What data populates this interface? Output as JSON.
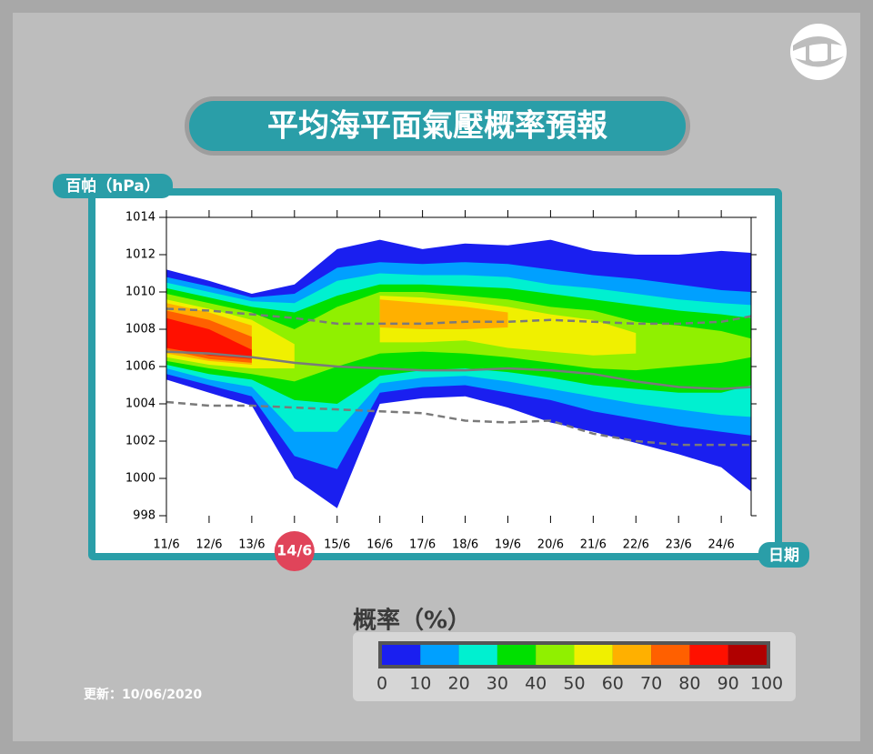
{
  "chart_data": {
    "type": "probability-fan",
    "title": "平均海平面氣壓概率預報",
    "y_label": "百帕（hPa）",
    "x_label": "日期",
    "update_note": "更新：10/06/2020",
    "xlim": [
      11,
      24.7
    ],
    "xticks": [
      {
        "value": 11,
        "label": "11/6"
      },
      {
        "value": 12,
        "label": "12/6"
      },
      {
        "value": 13,
        "label": "13/6"
      },
      {
        "value": 14,
        "label": "14/6"
      },
      {
        "value": 15,
        "label": "15/6"
      },
      {
        "value": 16,
        "label": "16/6"
      },
      {
        "value": 17,
        "label": "17/6"
      },
      {
        "value": 18,
        "label": "18/6"
      },
      {
        "value": 19,
        "label": "19/6"
      },
      {
        "value": 20,
        "label": "20/6"
      },
      {
        "value": 21,
        "label": "21/6"
      },
      {
        "value": 22,
        "label": "22/6"
      },
      {
        "value": 23,
        "label": "23/6"
      },
      {
        "value": 24,
        "label": "24/6"
      }
    ],
    "highlight_x": 14,
    "ylim": [
      998,
      1014
    ],
    "yticks": [
      998,
      1000,
      1002,
      1004,
      1006,
      1008,
      1010,
      1012,
      1014
    ],
    "x": [
      11,
      12,
      13,
      14,
      15,
      16,
      17,
      18,
      19,
      20,
      21,
      22,
      23,
      24,
      24.7
    ],
    "bands": [
      {
        "probability": 0,
        "upper": [
          1011.2,
          1010.6,
          1009.9,
          1010.4,
          1012.3,
          1012.8,
          1012.3,
          1012.6,
          1012.5,
          1012.8,
          1012.2,
          1012.0,
          1012.0,
          1012.2,
          1012.1
        ],
        "lower": [
          1005.3,
          1004.6,
          1003.9,
          1000.0,
          998.4,
          1004.0,
          1004.3,
          1004.4,
          1003.8,
          1003.0,
          1002.5,
          1001.9,
          1001.3,
          1000.6,
          999.3
        ]
      },
      {
        "probability": 10,
        "upper": [
          1010.8,
          1010.3,
          1009.7,
          1009.9,
          1011.3,
          1011.6,
          1011.5,
          1011.6,
          1011.5,
          1011.2,
          1010.9,
          1010.7,
          1010.4,
          1010.1,
          1010.0
        ],
        "lower": [
          1005.6,
          1005.0,
          1004.4,
          1001.2,
          1000.5,
          1004.6,
          1004.9,
          1005.0,
          1004.6,
          1004.2,
          1003.6,
          1003.2,
          1002.8,
          1002.5,
          1002.3
        ]
      },
      {
        "probability": 20,
        "upper": [
          1010.5,
          1010.0,
          1009.5,
          1009.4,
          1010.6,
          1011.0,
          1010.9,
          1010.9,
          1010.8,
          1010.4,
          1010.2,
          1009.9,
          1009.6,
          1009.4,
          1009.3
        ],
        "lower": [
          1005.9,
          1005.3,
          1004.9,
          1002.5,
          1002.5,
          1005.1,
          1005.4,
          1005.5,
          1005.2,
          1004.8,
          1004.4,
          1004.0,
          1003.7,
          1003.4,
          1003.3
        ]
      },
      {
        "probability": 30,
        "upper": [
          1010.2,
          1009.7,
          1009.2,
          1008.9,
          1009.8,
          1010.4,
          1010.4,
          1010.3,
          1010.2,
          1009.9,
          1009.6,
          1009.3,
          1009.0,
          1008.8,
          1008.6
        ],
        "lower": [
          1006.1,
          1005.6,
          1005.3,
          1004.2,
          1004.0,
          1005.5,
          1005.8,
          1005.9,
          1005.7,
          1005.4,
          1005.0,
          1004.8,
          1004.6,
          1004.6,
          1005.0
        ]
      },
      {
        "probability": 40,
        "upper": [
          1009.9,
          1009.4,
          1008.9,
          1008.0,
          1009.2,
          1010.0,
          1010.0,
          1009.8,
          1009.6,
          1009.2,
          1009.0,
          1008.4,
          1008.2,
          1007.9,
          1007.5
        ],
        "lower": [
          1006.3,
          1005.9,
          1005.6,
          1005.2,
          1006.0,
          1006.7,
          1006.8,
          1006.7,
          1006.5,
          1006.2,
          1005.9,
          1005.8,
          1006.0,
          1006.2,
          1006.5
        ]
      },
      {
        "probability": 50,
        "upper": [
          1009.6,
          1009.1,
          1008.5,
          1007.2,
          null,
          1009.8,
          1009.7,
          1009.5,
          1009.2,
          1008.8,
          1008.5,
          1007.8,
          null,
          null,
          null
        ],
        "lower": [
          1006.5,
          1006.1,
          1005.9,
          1005.9,
          null,
          1007.3,
          1007.3,
          1007.4,
          1007.0,
          1006.8,
          1006.6,
          1006.7,
          null,
          null,
          null
        ]
      },
      {
        "probability": 60,
        "upper": [
          1009.4,
          1008.9,
          1008.2,
          null,
          null,
          1009.6,
          1009.4,
          1009.2,
          1008.9,
          null,
          null,
          null,
          null,
          null,
          null
        ],
        "lower": [
          1006.7,
          1006.3,
          1006.1,
          null,
          null,
          1008.1,
          1008.0,
          1008.0,
          1008.1,
          null,
          null,
          null,
          null,
          null,
          null
        ]
      },
      {
        "probability": 70,
        "upper": [
          1009.0,
          1008.5,
          1007.6,
          null,
          null,
          null,
          null,
          null,
          null,
          null,
          null,
          null,
          null,
          null,
          null
        ],
        "lower": [
          1006.9,
          1006.4,
          1006.2,
          null,
          null,
          null,
          null,
          null,
          null,
          null,
          null,
          null,
          null,
          null,
          null
        ]
      },
      {
        "probability": 80,
        "upper": [
          1008.6,
          1008.0,
          1006.9,
          null,
          null,
          null,
          null,
          null,
          null,
          null,
          null,
          null,
          null,
          null,
          null
        ],
        "lower": [
          1007.0,
          1006.6,
          1006.4,
          null,
          null,
          null,
          null,
          null,
          null,
          null,
          null,
          null,
          null,
          null,
          null
        ]
      }
    ],
    "lines": [
      {
        "style": "solid",
        "color": "#7a7a7a",
        "values": [
          1006.8,
          1006.7,
          1006.5,
          1006.2,
          1006.0,
          1005.9,
          1005.8,
          1005.8,
          1005.9,
          1005.8,
          1005.6,
          1005.2,
          1004.9,
          1004.8,
          1004.9
        ]
      },
      {
        "style": "dashed",
        "color": "#7a7a7a",
        "values": [
          1009.1,
          1009.0,
          1008.8,
          1008.6,
          1008.3,
          1008.3,
          1008.3,
          1008.4,
          1008.4,
          1008.5,
          1008.4,
          1008.3,
          1008.3,
          1008.4,
          1008.7
        ]
      },
      {
        "style": "dashed",
        "color": "#7a7a7a",
        "values": [
          1004.1,
          1003.9,
          1003.9,
          1003.8,
          1003.7,
          1003.6,
          1003.5,
          1003.1,
          1003.0,
          1003.1,
          1002.4,
          1002.0,
          1001.8,
          1001.8,
          1001.8
        ]
      }
    ],
    "colorbar": {
      "title": "概率（%）",
      "ticks": [
        0,
        10,
        20,
        30,
        40,
        50,
        60,
        70,
        80,
        90,
        100
      ],
      "colors": [
        "#1a1ff0",
        "#00a0ff",
        "#00f0d0",
        "#00e000",
        "#90f000",
        "#f0f000",
        "#ffb000",
        "#ff6000",
        "#ff1000",
        "#b00000"
      ]
    }
  }
}
